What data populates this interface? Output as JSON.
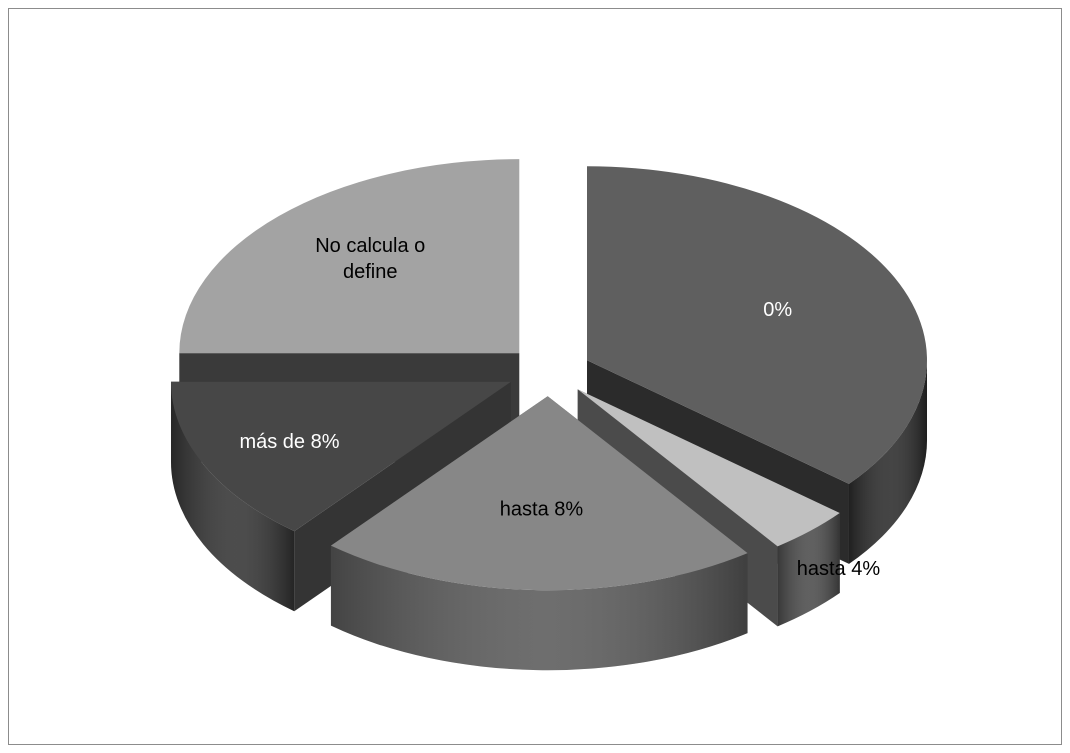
{
  "chart_data": {
    "type": "pie",
    "style": "3d-exploded",
    "title": "",
    "legend": "none",
    "slices": [
      {
        "label": "0%",
        "value": 36,
        "top_color": "#5f5f5f",
        "side_color": "#2b2b2b",
        "label_color": "#ffffff"
      },
      {
        "label": "hasta 4%",
        "value": 4,
        "top_color": "#c0c0c0",
        "side_color": "#4b4b4b",
        "label_color": "#000000"
      },
      {
        "label": "hasta 8%",
        "value": 21,
        "top_color": "#878787",
        "side_color": "#5a5a5a",
        "label_color": "#000000"
      },
      {
        "label": "más de 8%",
        "value": 14,
        "top_color": "#474747",
        "side_color": "#343434",
        "label_color": "#ffffff"
      },
      {
        "label": "No calcula o define",
        "value": 25,
        "top_color": "#a3a3a3",
        "side_color": "#3a3a3a",
        "label_color": "#000000"
      }
    ]
  }
}
